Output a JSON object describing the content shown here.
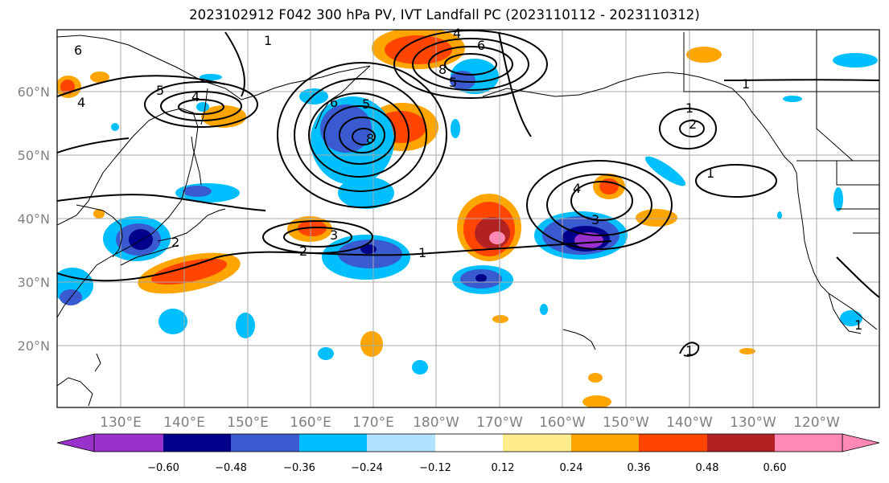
{
  "title": "2023102912 F042 300 hPa PV, IVT Landfall PC (2023110112 - 2023110312)",
  "map": {
    "lat_labels": [
      "60°N",
      "50°N",
      "40°N",
      "30°N",
      "20°N"
    ],
    "lon_labels": [
      "130°E",
      "140°E",
      "150°E",
      "160°E",
      "170°E",
      "180°W",
      "170°W",
      "160°W",
      "150°W",
      "140°W",
      "130°W",
      "120°W"
    ],
    "contour_labels": [
      "1",
      "1",
      "1",
      "1",
      "1",
      "1",
      "1",
      "2",
      "2",
      "2",
      "3",
      "3",
      "4",
      "4",
      "4",
      "4",
      "5",
      "5",
      "5",
      "6",
      "6",
      "6",
      "8",
      "8"
    ]
  },
  "colorbar": {
    "ticks": [
      "−0.60",
      "−0.48",
      "−0.36",
      "−0.24",
      "−0.12",
      "0.12",
      "0.24",
      "0.36",
      "0.48",
      "0.60"
    ],
    "colors": [
      "#9932cc",
      "#00008b",
      "#3a5bcf",
      "#00bfff",
      "#b0e2ff",
      "#ffffff",
      "#ffec8b",
      "#ffa500",
      "#ff4500",
      "#b22222",
      "#ff89b4"
    ]
  }
}
